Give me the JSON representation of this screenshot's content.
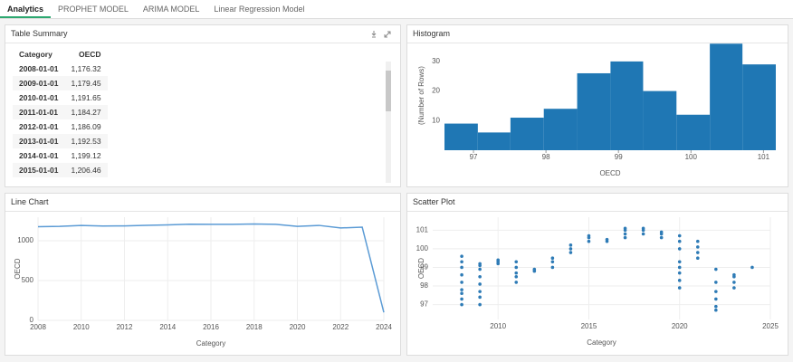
{
  "tabs": [
    "Analytics",
    "PROPHET MODEL",
    "ARIMA MODEL",
    "Linear Regression Model"
  ],
  "table_summary": {
    "title": "Table Summary",
    "columns": [
      "Category",
      "OECD"
    ],
    "rows": [
      [
        "2008-01-01",
        "1,176.32"
      ],
      [
        "2009-01-01",
        "1,179.45"
      ],
      [
        "2010-01-01",
        "1,191.65"
      ],
      [
        "2011-01-01",
        "1,184.27"
      ],
      [
        "2012-01-01",
        "1,186.09"
      ],
      [
        "2013-01-01",
        "1,192.53"
      ],
      [
        "2014-01-01",
        "1,199.12"
      ],
      [
        "2015-01-01",
        "1,206.46"
      ]
    ]
  },
  "chart_data": [
    {
      "type": "histogram",
      "title": "Histogram",
      "x_label": "OECD",
      "y_label": "(Number of Rows)",
      "color": "#1f77b4",
      "bins": [
        96.6,
        97.06,
        97.51,
        97.97,
        98.43,
        98.89,
        99.34,
        99.8,
        100.26,
        100.71,
        101.17
      ],
      "counts": [
        9,
        6,
        11,
        14,
        26,
        30,
        20,
        12,
        36,
        29
      ],
      "xlim": [
        96.6,
        101.17
      ],
      "ylim": [
        0,
        37
      ],
      "xticks": [
        97,
        98,
        99,
        100,
        101
      ],
      "yticks": [
        10,
        20,
        30
      ],
      "grid": false
    },
    {
      "type": "line",
      "title": "Line Chart",
      "x_label": "Category",
      "y_label": "OECD",
      "color": "#5b9bd5",
      "x": [
        2008,
        2009,
        2010,
        2011,
        2012,
        2013,
        2014,
        2015,
        2016,
        2017,
        2018,
        2019,
        2020,
        2021,
        2022,
        2023,
        2024
      ],
      "values": [
        1176.32,
        1179.45,
        1191.65,
        1184.27,
        1186.09,
        1192.53,
        1199.12,
        1206.46,
        1205,
        1205,
        1210,
        1205,
        1180,
        1192,
        1160,
        1170,
        100
      ],
      "xlim": [
        2008,
        2024
      ],
      "ylim": [
        0,
        1295
      ],
      "xticks": [
        2008,
        2010,
        2012,
        2014,
        2016,
        2018,
        2020,
        2022,
        2024
      ],
      "yticks": [
        0,
        500,
        1000
      ],
      "grid": true
    },
    {
      "type": "scatter",
      "title": "Scatter Plot",
      "x_label": "Category",
      "y_label": "OECD",
      "color": "#2e7bb6",
      "x": [
        2008,
        2008,
        2008,
        2008,
        2008,
        2008,
        2008,
        2008,
        2008,
        2009,
        2009,
        2009,
        2009,
        2009,
        2009,
        2009,
        2009,
        2010,
        2010,
        2010,
        2011,
        2011,
        2011,
        2011,
        2011,
        2012,
        2012,
        2013,
        2013,
        2013,
        2014,
        2014,
        2014,
        2015,
        2015,
        2015,
        2016,
        2016,
        2017,
        2017,
        2017,
        2017,
        2018,
        2018,
        2018,
        2019,
        2019,
        2019,
        2020,
        2020,
        2020,
        2020,
        2020,
        2020,
        2020,
        2020,
        2021,
        2021,
        2021,
        2021,
        2022,
        2022,
        2022,
        2022,
        2022,
        2022,
        2023,
        2023,
        2023,
        2023,
        2024
      ],
      "values": [
        97.0,
        97.3,
        97.6,
        97.8,
        98.2,
        98.6,
        99.0,
        99.3,
        99.6,
        97.0,
        97.4,
        97.7,
        98.1,
        98.5,
        98.9,
        99.1,
        99.2,
        99.2,
        99.3,
        99.4,
        98.2,
        98.5,
        98.7,
        99.0,
        99.3,
        98.8,
        98.9,
        99.0,
        99.3,
        99.5,
        99.8,
        100.0,
        100.2,
        100.4,
        100.6,
        100.7,
        100.4,
        100.5,
        100.6,
        100.8,
        101.0,
        101.1,
        100.8,
        101.0,
        101.1,
        100.6,
        100.8,
        100.9,
        97.9,
        98.3,
        98.7,
        99.0,
        99.3,
        100.0,
        100.4,
        100.7,
        99.5,
        99.8,
        100.1,
        100.4,
        96.7,
        96.9,
        97.3,
        97.7,
        98.2,
        98.9,
        97.9,
        98.2,
        98.5,
        98.6,
        99.0
      ],
      "xlim": [
        2006.4,
        2025
      ],
      "ylim": [
        96.2,
        101.7
      ],
      "xticks": [
        2010,
        2015,
        2020,
        2025
      ],
      "yticks": [
        97,
        98,
        99,
        100,
        101
      ],
      "grid": true
    }
  ]
}
